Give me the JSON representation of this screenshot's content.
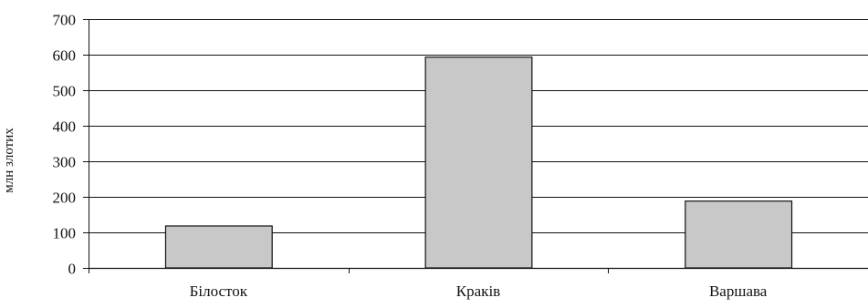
{
  "chart_data": {
    "type": "bar",
    "title": "",
    "xlabel": "",
    "ylabel": "млн злотих",
    "categories": [
      "Білосток",
      "Краків",
      "Варшава"
    ],
    "values": [
      118,
      593,
      188
    ],
    "ylim": [
      0,
      700
    ],
    "yticks": [
      0,
      100,
      200,
      300,
      400,
      500,
      600,
      700
    ],
    "grid": true,
    "colors": {
      "bar_fill": "#c8c8c8",
      "bar_stroke": "#111111",
      "grid": "#111111",
      "axis": "#111111"
    }
  }
}
